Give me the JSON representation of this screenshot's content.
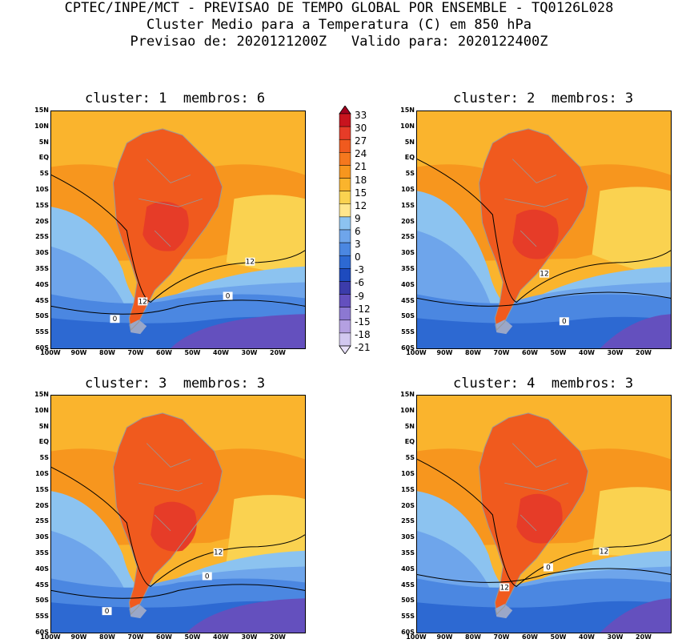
{
  "header": {
    "line1": "CPTEC/INPE/MCT - PREVISAO DE TEMPO GLOBAL POR ENSEMBLE - TQ0126L028",
    "line2": "Cluster Medio para a Temperatura (C) em 850 hPa",
    "line3": "Previsao de: 2020121200Z   Valido para: 2020122400Z"
  },
  "panels": [
    {
      "title": "cluster: 1  membros: 6",
      "contour_labels": [
        "12",
        "12",
        "0",
        "0"
      ]
    },
    {
      "title": "cluster: 2  membros: 3",
      "contour_labels": [
        "12",
        "0"
      ]
    },
    {
      "title": "cluster: 3  membros: 3",
      "contour_labels": [
        "12",
        "0",
        "0"
      ]
    },
    {
      "title": "cluster: 4  membros: 3",
      "contour_labels": [
        "12",
        "12",
        "0"
      ]
    }
  ],
  "lat_labels": [
    "15N",
    "10N",
    "5N",
    "EQ",
    "5S",
    "10S",
    "15S",
    "20S",
    "25S",
    "30S",
    "35S",
    "40S",
    "45S",
    "50S",
    "55S",
    "60S"
  ],
  "lon_labels": [
    "100W",
    "90W",
    "80W",
    "70W",
    "60W",
    "50W",
    "40W",
    "30W",
    "20W"
  ],
  "colorbar": {
    "labels": [
      "33",
      "30",
      "27",
      "24",
      "21",
      "18",
      "15",
      "12",
      "9",
      "6",
      "3",
      "0",
      "-3",
      "-6",
      "-9",
      "-12",
      "-15",
      "-18",
      "-21"
    ],
    "colors": [
      "#a0001e",
      "#c8141e",
      "#e63c28",
      "#f05a1e",
      "#f5781e",
      "#f7961e",
      "#fab42d",
      "#fad250",
      "#ffe68c",
      "#8cc3f0",
      "#6ea5eb",
      "#4b87e1",
      "#2d69d2",
      "#1e4bbe",
      "#3c3caa",
      "#6450be",
      "#8c78d2",
      "#b4a0e1",
      "#d2c8f0",
      "#e8e0f8"
    ]
  },
  "map_colors": {
    "orange_light": "#fab42d",
    "orange": "#f7961e",
    "red_orange": "#f05a1e",
    "red": "#e63c28",
    "yellow": "#fad250",
    "blue_light": "#8cc3f0",
    "blue_mid": "#6ea5eb",
    "blue": "#4b87e1",
    "blue_dark": "#2d69d2",
    "purple": "#6450be"
  }
}
